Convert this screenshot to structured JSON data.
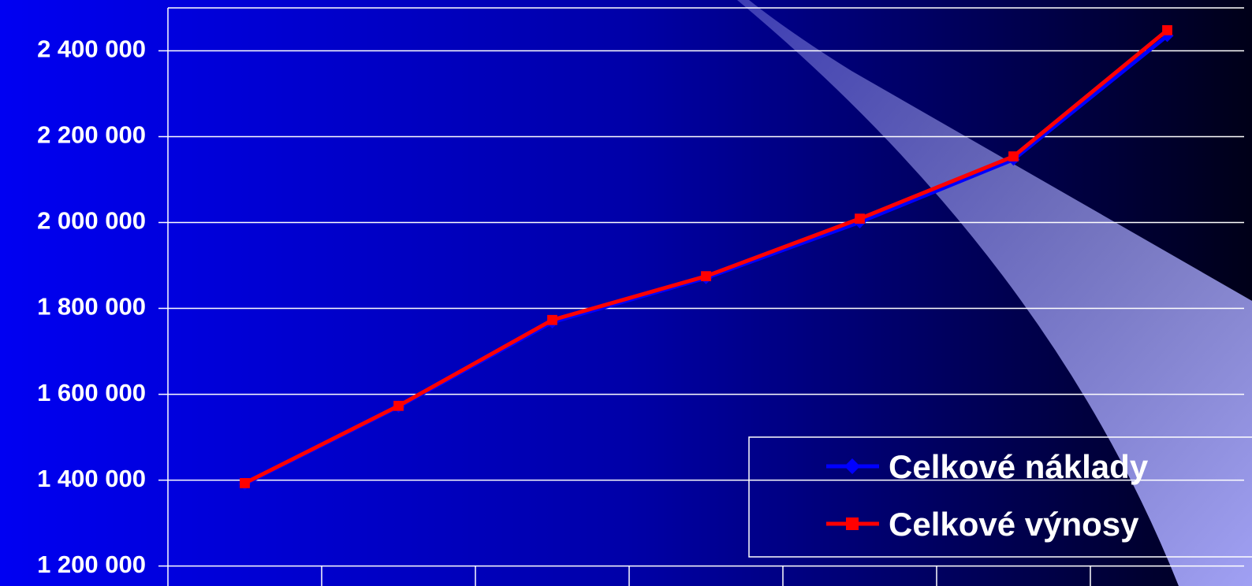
{
  "chart_data": {
    "type": "line",
    "categories": [
      null,
      null,
      null,
      null,
      null,
      null,
      null
    ],
    "series": [
      {
        "name": "Celkové náklady",
        "color": "#0000ff",
        "marker": "diamond",
        "values": [
          1391000,
          1571000,
          1768000,
          1871000,
          2001000,
          2147000,
          2435000
        ]
      },
      {
        "name": "Celkové výnosy",
        "color": "#ff0000",
        "marker": "square",
        "values": [
          1393000,
          1573000,
          1773000,
          1875000,
          2009000,
          2154000,
          2448000
        ]
      }
    ],
    "ylim": [
      1200000,
      2500000
    ],
    "yticks": [
      {
        "value": 1200000,
        "label": "1 200 000"
      },
      {
        "value": 1400000,
        "label": "1 400 000"
      },
      {
        "value": 1600000,
        "label": "1 600 000"
      },
      {
        "value": 1800000,
        "label": "1 800 000"
      },
      {
        "value": 2000000,
        "label": "2 000 000"
      },
      {
        "value": 2200000,
        "label": "2 200 000"
      },
      {
        "value": 2400000,
        "label": "2 400 000"
      }
    ],
    "grid": true,
    "legend": "lower right"
  }
}
